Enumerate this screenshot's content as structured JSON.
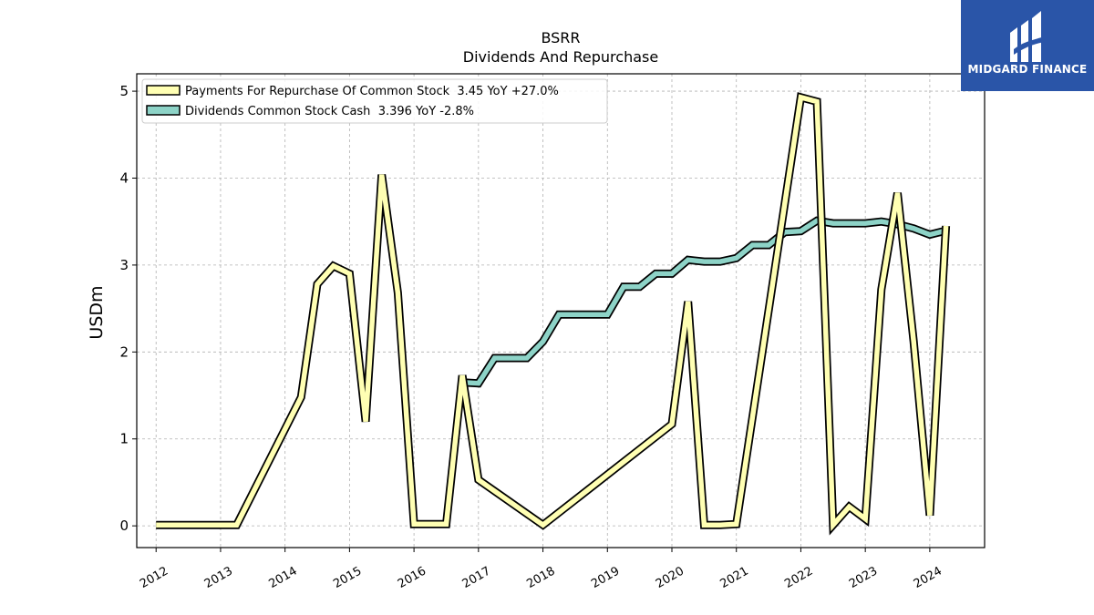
{
  "chart_data": {
    "type": "line",
    "title": "BSRR",
    "subtitle": "Dividends And Repurchase",
    "xlabel": "",
    "ylabel": "USDm",
    "xlim": [
      2011.7,
      2024.85
    ],
    "ylim": [
      -0.25,
      5.2
    ],
    "xticks": [
      "2012",
      "2013",
      "2014",
      "2015",
      "2016",
      "2017",
      "2018",
      "2019",
      "2020",
      "2021",
      "2022",
      "2023",
      "2024"
    ],
    "yticks": [
      "0",
      "1",
      "2",
      "3",
      "4",
      "5"
    ],
    "grid": true,
    "legend_position": "top-left",
    "series": [
      {
        "name": "Payments For Repurchase Of Common Stock  3.45 YoY +27.0%",
        "color": "#ffffb3",
        "x": [
          2012.0,
          2013.25,
          2014.25,
          2014.5,
          2014.75,
          2015.0,
          2015.25,
          2015.5,
          2015.75,
          2016.0,
          2016.25,
          2016.5,
          2016.75,
          2017.0,
          2018.0,
          2020.0,
          2020.25,
          2020.5,
          2020.75,
          2021.0,
          2022.0,
          2022.25,
          2022.5,
          2022.75,
          2023.0,
          2023.25,
          2023.5,
          2023.75,
          2024.0,
          2024.25
        ],
        "values": [
          0.01,
          0.01,
          1.48,
          2.78,
          2.99,
          2.9,
          1.2,
          4.04,
          2.68,
          0.02,
          0.02,
          0.02,
          1.73,
          0.53,
          0.01,
          1.17,
          2.58,
          0.01,
          0.01,
          0.02,
          4.93,
          4.88,
          0.01,
          0.22,
          0.08,
          2.72,
          3.83,
          2.12,
          0.12,
          3.45
        ]
      },
      {
        "name": "Dividends Common Stock Cash  3.396 YoY -2.8%",
        "color": "#8dd3c7",
        "x": [
          2016.75,
          2017.0,
          2017.25,
          2017.5,
          2017.75,
          2018.0,
          2018.25,
          2018.5,
          2018.75,
          2019.0,
          2019.25,
          2019.5,
          2019.75,
          2020.0,
          2020.25,
          2020.5,
          2020.75,
          2021.0,
          2021.25,
          2021.5,
          2021.75,
          2022.0,
          2022.25,
          2022.5,
          2022.75,
          2023.0,
          2023.25,
          2023.5,
          2023.75,
          2024.0,
          2024.25
        ],
        "values": [
          1.65,
          1.64,
          1.93,
          1.93,
          1.93,
          2.12,
          2.43,
          2.43,
          2.43,
          2.43,
          2.75,
          2.75,
          2.9,
          2.9,
          3.06,
          3.04,
          3.04,
          3.08,
          3.23,
          3.23,
          3.38,
          3.39,
          3.51,
          3.48,
          3.48,
          3.48,
          3.5,
          3.47,
          3.42,
          3.35,
          3.396
        ]
      }
    ]
  },
  "logo": {
    "text": "MIDGARD FINANCE",
    "background": "#2a55a8"
  }
}
